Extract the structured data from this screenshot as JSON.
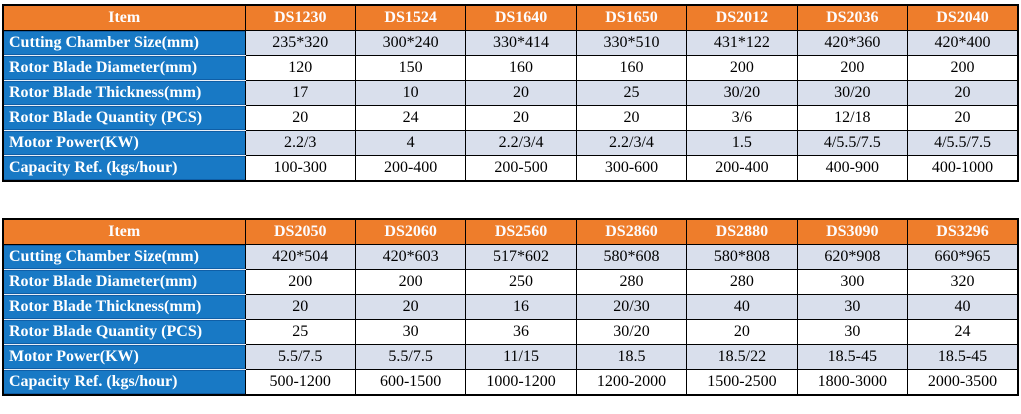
{
  "colors": {
    "header_bg": "#EE7D2B",
    "header_text": "#FCFCFF",
    "item_bg": "#1879C5",
    "item_text": "#FFFFFF",
    "row_alt_bg": "#D9DFEC",
    "row_bg": "#FFFFFF",
    "data_text": "#000000",
    "border": "#000000",
    "page_bg": "#FFFFFF"
  },
  "tables": [
    {
      "item_header": "Item",
      "columns": [
        "DS1230",
        "DS1524",
        "DS1640",
        "DS1650",
        "DS2012",
        "DS2036",
        "DS2040"
      ],
      "rows": [
        {
          "label": "Cutting Chamber Size(mm)",
          "values": [
            "235*320",
            "300*240",
            "330*414",
            "330*510",
            "431*122",
            "420*360",
            "420*400"
          ]
        },
        {
          "label": "Rotor Blade Diameter(mm)",
          "values": [
            "120",
            "150",
            "160",
            "160",
            "200",
            "200",
            "200"
          ]
        },
        {
          "label": "Rotor Blade Thickness(mm)",
          "values": [
            "17",
            "10",
            "20",
            "25",
            "30/20",
            "30/20",
            "20"
          ]
        },
        {
          "label": "Rotor Blade Quantity (PCS)",
          "values": [
            "20",
            "24",
            "20",
            "20",
            "3/6",
            "12/18",
            "20"
          ]
        },
        {
          "label": "Motor Power(KW)",
          "values": [
            "2.2/3",
            "4",
            "2.2/3/4",
            "2.2/3/4",
            "1.5",
            "4/5.5/7.5",
            "4/5.5/7.5"
          ]
        },
        {
          "label": "Capacity Ref. (kgs/hour)",
          "values": [
            "100-300",
            "200-400",
            "200-500",
            "300-600",
            "200-400",
            "400-900",
            "400-1000"
          ]
        }
      ]
    },
    {
      "item_header": "Item",
      "columns": [
        "DS2050",
        "DS2060",
        "DS2560",
        "DS2860",
        "DS2880",
        "DS3090",
        "DS3296"
      ],
      "rows": [
        {
          "label": "Cutting Chamber Size(mm)",
          "values": [
            "420*504",
            "420*603",
            "517*602",
            "580*608",
            "580*808",
            "620*908",
            "660*965"
          ]
        },
        {
          "label": "Rotor Blade Diameter(mm)",
          "values": [
            "200",
            "200",
            "250",
            "280",
            "280",
            "300",
            "320"
          ]
        },
        {
          "label": "Rotor Blade Thickness(mm)",
          "values": [
            "20",
            "20",
            "16",
            "20/30",
            "40",
            "30",
            "40"
          ]
        },
        {
          "label": "Rotor Blade Quantity (PCS)",
          "values": [
            "25",
            "30",
            "36",
            "30/20",
            "20",
            "30",
            "24"
          ]
        },
        {
          "label": "Motor Power(KW)",
          "values": [
            "5.5/7.5",
            "5.5/7.5",
            "11/15",
            "18.5",
            "18.5/22",
            "18.5-45",
            "18.5-45"
          ]
        },
        {
          "label": "Capacity Ref. (kgs/hour)",
          "values": [
            "500-1200",
            "600-1500",
            "1000-1200",
            "1200-2000",
            "1500-2500",
            "1800-3000",
            "2000-3500"
          ]
        }
      ]
    }
  ]
}
